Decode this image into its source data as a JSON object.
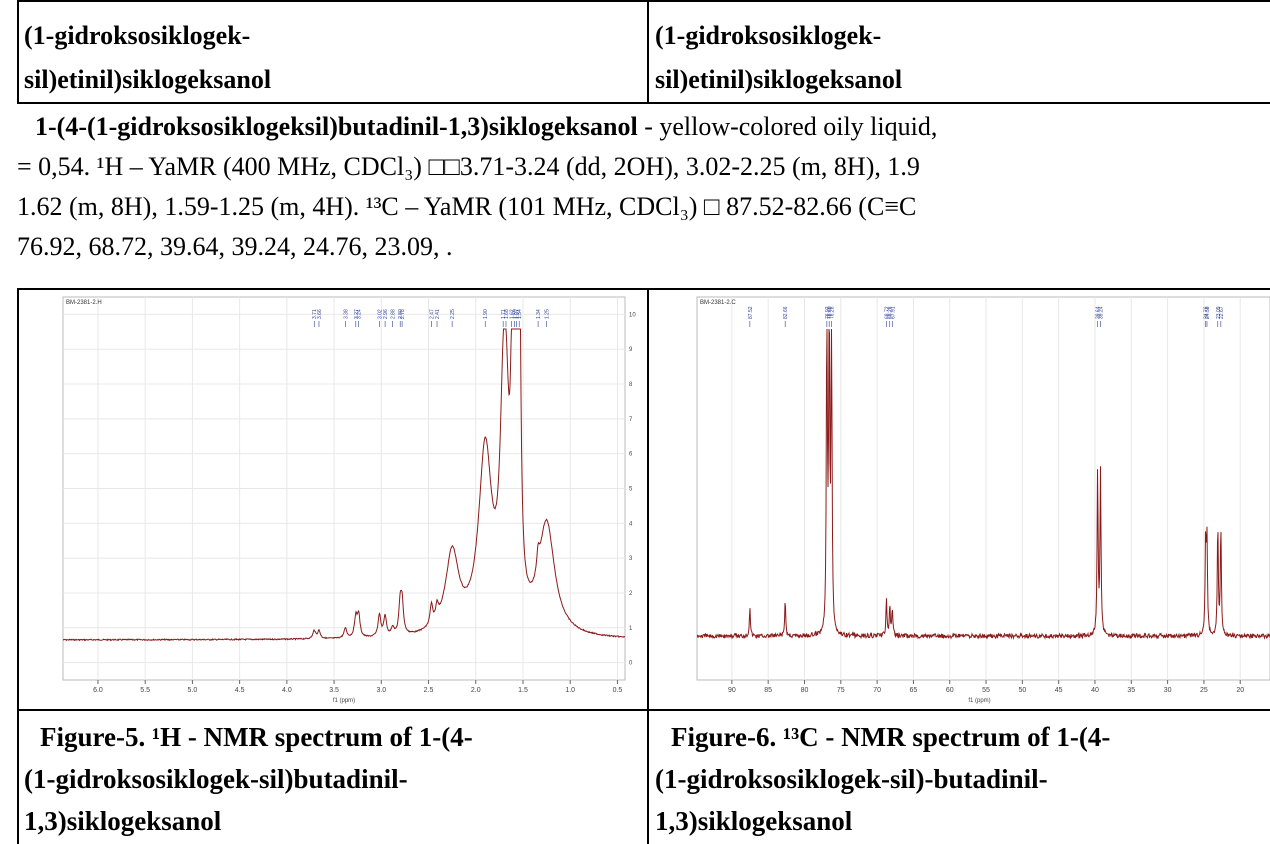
{
  "table_header": {
    "cells": [
      [
        "(1-gidroksosiklogek-",
        "sil)etinil)siklogeksanol"
      ],
      [
        "(1-gidroksosiklogek-",
        "sil)etinil)siklogeksanol"
      ]
    ]
  },
  "paragraph": {
    "bold": "1-(4-(1-gidroksosiklogeksil)butadinil-1,3)siklogeksanol",
    "lines": [
      " - yellow-colored oily liquid,",
      "= 0,54. ¹H – YaMR (400 MHz, CDCl₃) □□3.71-3.24 (dd, 2OH), 3.02-2.25 (m, 8H), 1.9",
      "1.62 (m, 8H), 1.59-1.25 (m, 4H). ¹³C – YaMR (101 MHz, CDCl₃) □ 87.52-82.66 (C≡C",
      "76.92, 68.72, 39.64, 39.24, 24.76, 23.09, ."
    ]
  },
  "figures": [
    {
      "caption": [
        "Figure-5. ¹H - NMR spectrum of 1-(4-",
        "(1-gidroksosiklogek-sil)butadinil-",
        "1,3)siklogeksanol"
      ],
      "spectrum": {
        "sample": "BM-2381-2.H",
        "xlabel": "f1 (ppm)",
        "xlim": [
          6.37,
          0.42
        ],
        "xticks": [
          {
            "value": 6,
            "label": "6.0"
          },
          5.5,
          {
            "value": 5,
            "label": "5.0"
          },
          4.5,
          {
            "value": 4,
            "label": "4.0"
          },
          3.5,
          {
            "value": 3,
            "label": "3.0"
          },
          2.5,
          {
            "value": 2,
            "label": "2.0"
          },
          1.5,
          {
            "value": 1,
            "label": "1.0"
          },
          0.5
        ],
        "ylim": [
          -0.5,
          10.5
        ],
        "yticks": [
          0,
          1,
          2,
          3,
          4,
          5,
          6,
          7,
          8,
          9,
          10
        ],
        "peak_labels": [
          "3.71",
          "3.66",
          "3.38",
          "3.27",
          "3.24",
          "3.02",
          "2.96",
          "2.88",
          "2.80",
          "2.78",
          "2.47",
          "2.41",
          "2.25",
          "1.90",
          "1.71",
          "1.68",
          "1.62",
          "1.59",
          "1.57",
          "1.54",
          "1.34",
          "1.25"
        ]
      }
    },
    {
      "caption": [
        "Figure-6. ¹³C - NMR spectrum of 1-(4-",
        "(1-gidroksosiklogek-sil)-butadinil-",
        "1,3)siklogeksanol"
      ],
      "spectrum": {
        "sample": "BM-2381-2.C",
        "xlabel": "f1 (ppm)",
        "xlim": [
          94.8,
          15.9
        ],
        "xticks": [
          90,
          85,
          80,
          75,
          70,
          65,
          60,
          55,
          50,
          45,
          40,
          35,
          30,
          25,
          20
        ],
        "peak_labels": [
          "87.52",
          "82.66",
          "76.92",
          "76.60",
          "76.28",
          "68.72",
          "68.26",
          "67.91",
          "39.64",
          "39.24",
          "24.76",
          "24.58",
          "23.09",
          "22.67"
        ]
      }
    }
  ]
}
